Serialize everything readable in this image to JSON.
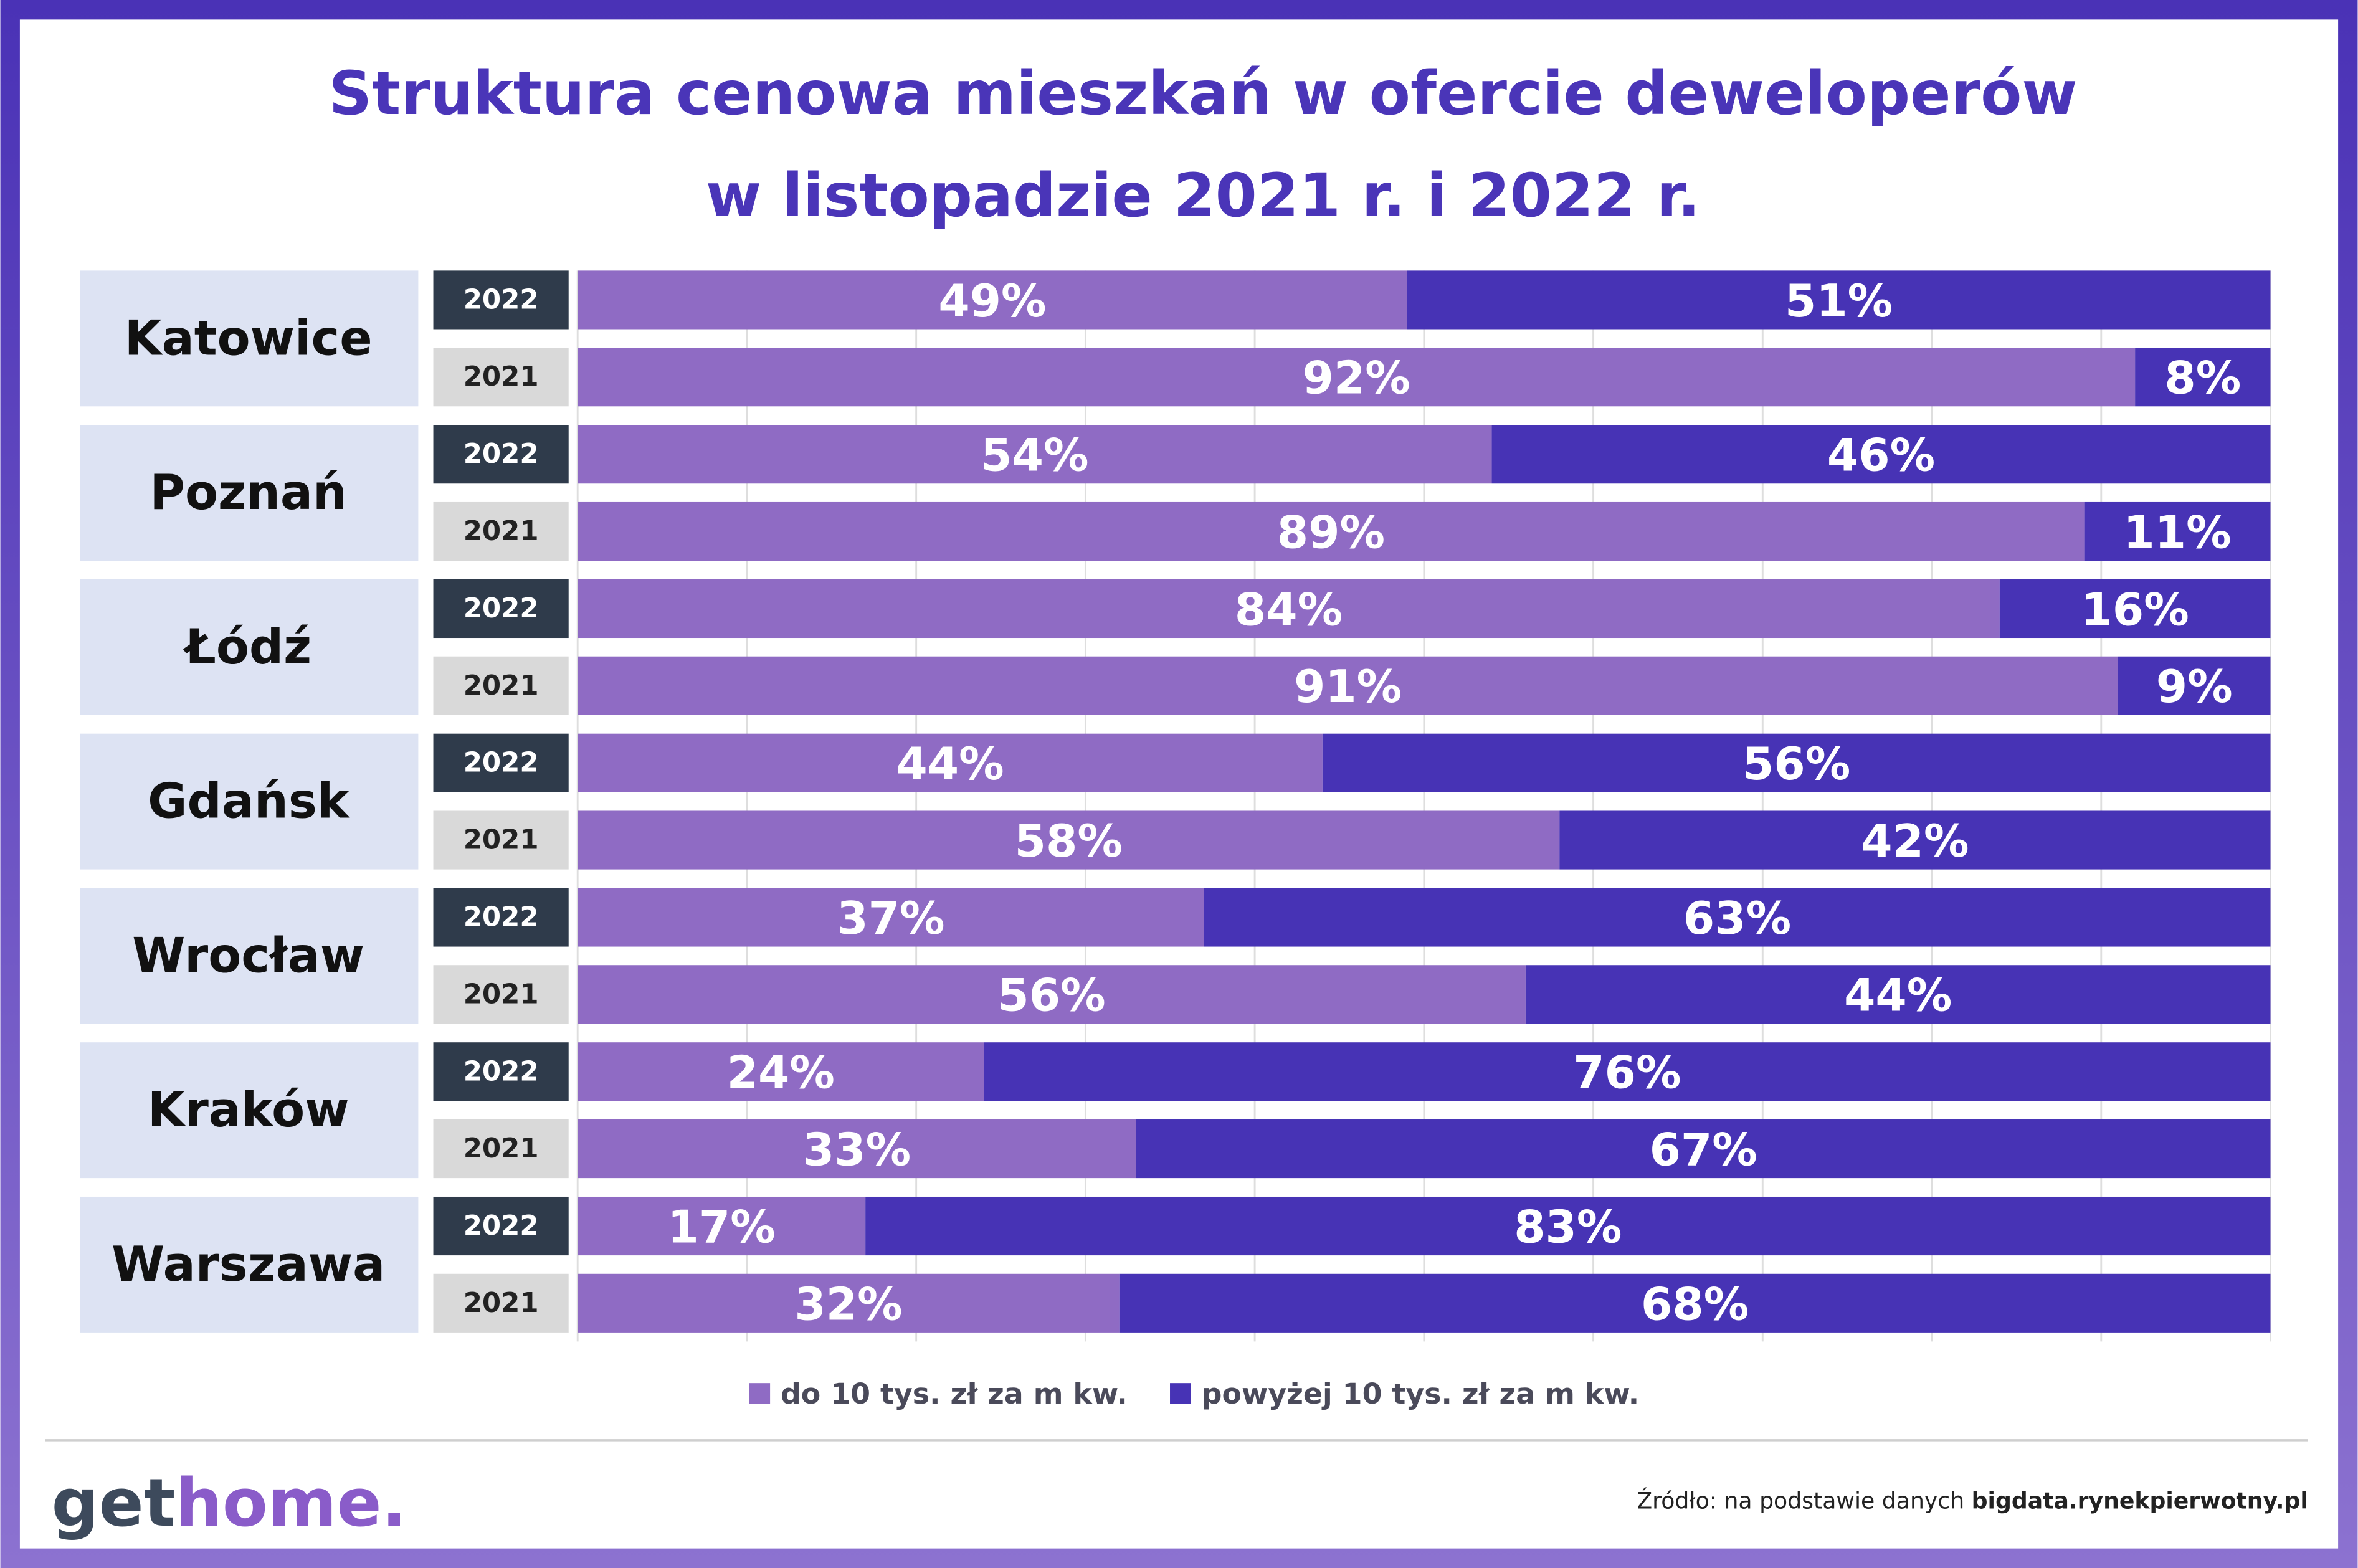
{
  "chart_data": {
    "type": "bar",
    "title_lines": [
      "Struktura cenowa mieszkań w ofercie deweloperów",
      "w listopadzie 2021 r. i 2022 r."
    ],
    "cities": [
      "Katowice",
      "Poznań",
      "Łódź",
      "Gdańsk",
      "Wrocław",
      "Kraków",
      "Warszawa"
    ],
    "categories": [
      "2022",
      "2021",
      "2022",
      "2021",
      "2022",
      "2021",
      "2022",
      "2021",
      "2022",
      "2021",
      "2022",
      "2021",
      "2022",
      "2021"
    ],
    "series": [
      {
        "name": "do 10 tys. zł za m kw.",
        "color": "#8f6bc4",
        "values": [
          49,
          92,
          54,
          89,
          84,
          91,
          44,
          58,
          37,
          56,
          24,
          33,
          17,
          32
        ],
        "value_labels": [
          "49%",
          "92%",
          "54%",
          "89%",
          "84%",
          "91%",
          "44%",
          "58%",
          "37%",
          "56%",
          "24%",
          "33%",
          "17%",
          "32%"
        ]
      },
      {
        "name": "powyżej 10 tys. zł za m kw.",
        "color": "#4733b5",
        "values": [
          51,
          8,
          46,
          11,
          16,
          9,
          56,
          42,
          63,
          44,
          76,
          67,
          83,
          68
        ],
        "value_labels": [
          "51%",
          "8%",
          "46%",
          "11%",
          "16%",
          "9%",
          "56%",
          "42%",
          "63%",
          "44%",
          "76%",
          "67%",
          "83%",
          "68%"
        ]
      }
    ],
    "stacked": true,
    "xlim": [
      0,
      100
    ],
    "xticks": [
      0,
      10,
      20,
      30,
      40,
      50,
      60,
      70,
      80,
      90,
      100
    ],
    "grid": true,
    "legend": "bottom"
  },
  "logo": {
    "dark": "get",
    "accent": "home."
  },
  "source": {
    "text": "Źródło: na podstawie danych ",
    "link": "bigdata.rynekpierwotny.pl"
  }
}
